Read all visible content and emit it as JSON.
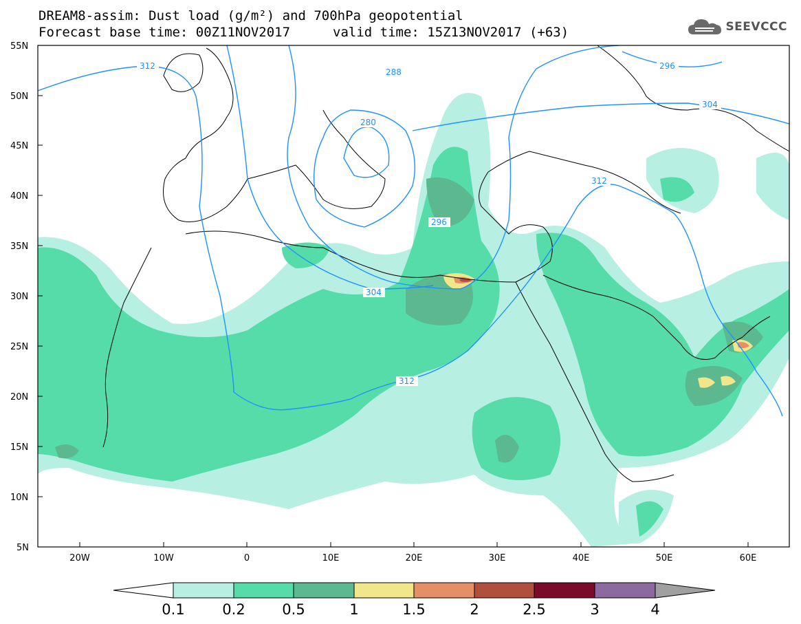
{
  "header": {
    "line1": "DREAM8-assim: Dust load (g/m²) and 700hPa geopotential",
    "base_time": "Forecast base time: 00Z11NOV2017",
    "valid_time": "valid time: 15Z13NOV2017 (+63)"
  },
  "logo": {
    "text": "SEEVCCC",
    "icon": "cloud-icon"
  },
  "axes": {
    "lat_labels": [
      "55N",
      "50N",
      "45N",
      "40N",
      "35N",
      "30N",
      "25N",
      "20N",
      "15N",
      "10N",
      "5N"
    ],
    "lon_labels": [
      "20W",
      "10W",
      "0",
      "10E",
      "20E",
      "30E",
      "40E",
      "50E",
      "60E"
    ]
  },
  "colorbar": {
    "levels": [
      "0.1",
      "0.2",
      "0.5",
      "1",
      "1.5",
      "2",
      "2.5",
      "3",
      "4"
    ],
    "colors": [
      "#b7efe3",
      "#55dca8",
      "#5bb88f",
      "#f2e68a",
      "#e58f66",
      "#b0503c",
      "#7a0c2a",
      "#8c6aa0",
      "#a0a0a0"
    ]
  },
  "contour_labels": [
    "312",
    "288",
    "296",
    "280",
    "304",
    "312",
    "296",
    "304",
    "312"
  ]
}
